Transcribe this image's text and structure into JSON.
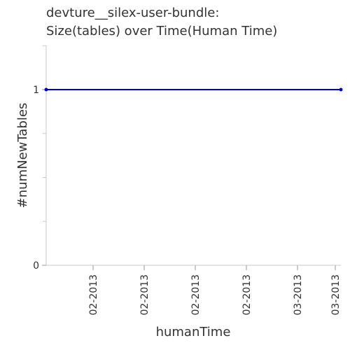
{
  "chart_data": {
    "type": "line",
    "title": "devture__silex-user-bundle:",
    "subtitle": "Size(tables) over Time(Human Time)",
    "xlabel": "humanTime",
    "ylabel": "#numNewTables",
    "x_tick_labels": [
      "02-2013",
      "02-2013",
      "02-2013",
      "02-2013",
      "03-2013",
      "03-2013"
    ],
    "y_tick_labels": [
      "0",
      "1"
    ],
    "ylim": [
      0,
      1.2
    ],
    "series": [
      {
        "color": "#0000cc",
        "values": [
          1,
          1
        ]
      }
    ],
    "grid": false,
    "legend": "none"
  }
}
